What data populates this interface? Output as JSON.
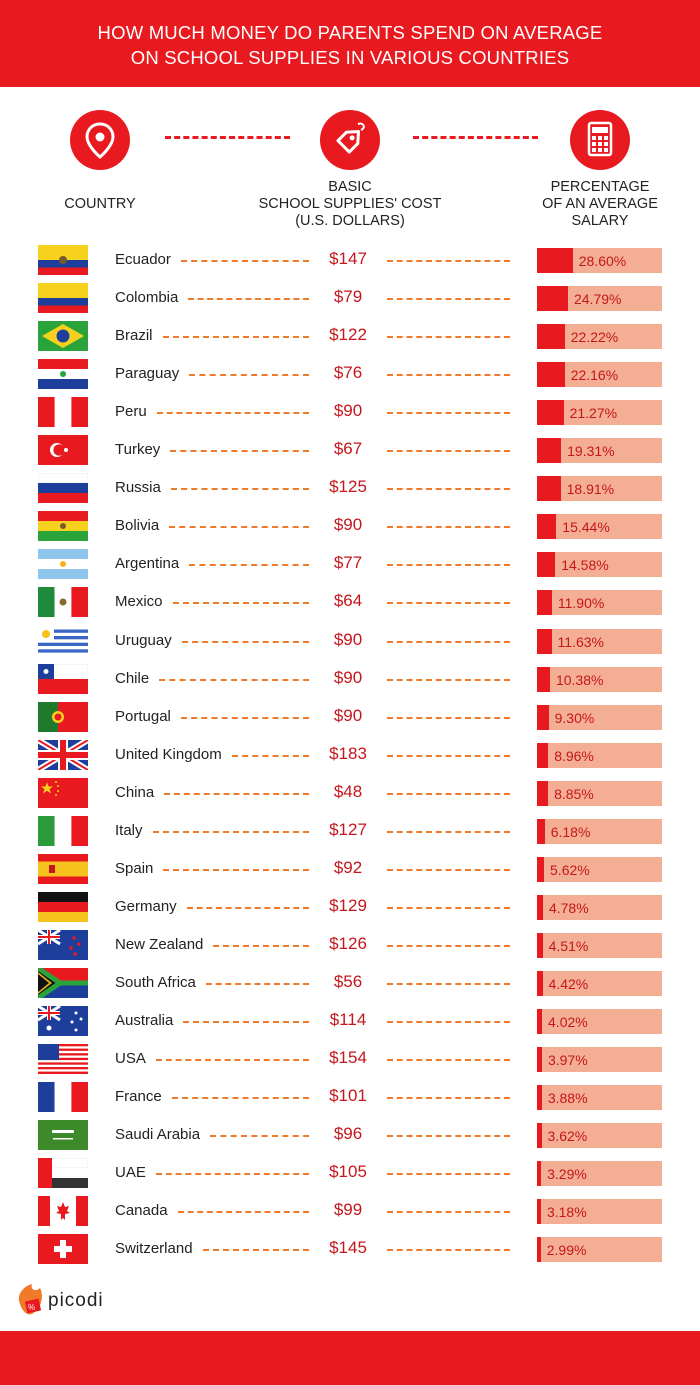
{
  "title": {
    "line1": "HOW MUCH MONEY DO PARENTS SPEND ON AVERAGE",
    "line2": "ON SCHOOL SUPPLIES IN VARIOUS COUNTRIES"
  },
  "columns": {
    "country": "COUNTRY",
    "cost": [
      "BASIC",
      "SCHOOL SUPPLIES' COST",
      "(U.S. DOLLARS)"
    ],
    "percent": [
      "PERCENTAGE",
      "OF AN AVERAGE",
      "SALARY"
    ]
  },
  "icons": [
    "location-pin-icon",
    "price-tag-icon",
    "calculator-icon"
  ],
  "colors": {
    "accent": "#e8191f",
    "bar_bg": "#f4ae93",
    "dash": "#f07a2a",
    "text_red": "#c5161c"
  },
  "brand": "picodi",
  "chart_data": {
    "type": "table",
    "title": "HOW MUCH MONEY DO PARENTS SPEND ON AVERAGE ON SCHOOL SUPPLIES IN VARIOUS COUNTRIES",
    "columns": [
      "COUNTRY",
      "BASIC SCHOOL SUPPLIES' COST (U.S. DOLLARS)",
      "PERCENTAGE OF AN AVERAGE SALARY"
    ],
    "rows": [
      {
        "country": "Ecuador",
        "flag": "ecuador-flag",
        "cost": "$147",
        "percent": "28.60%",
        "value": 28.6
      },
      {
        "country": "Colombia",
        "flag": "colombia-flag",
        "cost": "$79",
        "percent": "24.79%",
        "value": 24.79
      },
      {
        "country": "Brazil",
        "flag": "brazil-flag",
        "cost": "$122",
        "percent": "22.22%",
        "value": 22.22
      },
      {
        "country": "Paraguay",
        "flag": "paraguay-flag",
        "cost": "$76",
        "percent": "22.16%",
        "value": 22.16
      },
      {
        "country": "Peru",
        "flag": "peru-flag",
        "cost": "$90",
        "percent": "21.27%",
        "value": 21.27
      },
      {
        "country": "Turkey",
        "flag": "turkey-flag",
        "cost": "$67",
        "percent": "19.31%",
        "value": 19.31
      },
      {
        "country": "Russia",
        "flag": "russia-flag",
        "cost": "$125",
        "percent": "18.91%",
        "value": 18.91
      },
      {
        "country": "Bolivia",
        "flag": "bolivia-flag",
        "cost": "$90",
        "percent": "15.44%",
        "value": 15.44
      },
      {
        "country": "Argentina",
        "flag": "argentina-flag",
        "cost": "$77",
        "percent": "14.58%",
        "value": 14.58
      },
      {
        "country": "Mexico",
        "flag": "mexico-flag",
        "cost": "$64",
        "percent": "11.90%",
        "value": 11.9
      },
      {
        "country": "Uruguay",
        "flag": "uruguay-flag",
        "cost": "$90",
        "percent": "11.63%",
        "value": 11.63
      },
      {
        "country": "Chile",
        "flag": "chile-flag",
        "cost": "$90",
        "percent": "10.38%",
        "value": 10.38
      },
      {
        "country": "Portugal",
        "flag": "portugal-flag",
        "cost": "$90",
        "percent": "9.30%",
        "value": 9.3
      },
      {
        "country": "United Kingdom",
        "flag": "uk-flag",
        "cost": "$183",
        "percent": "8.96%",
        "value": 8.96
      },
      {
        "country": "China",
        "flag": "china-flag",
        "cost": "$48",
        "percent": "8.85%",
        "value": 8.85
      },
      {
        "country": "Italy",
        "flag": "italy-flag",
        "cost": "$127",
        "percent": "6.18%",
        "value": 6.18
      },
      {
        "country": "Spain",
        "flag": "spain-flag",
        "cost": "$92",
        "percent": "5.62%",
        "value": 5.62
      },
      {
        "country": "Germany",
        "flag": "germany-flag",
        "cost": "$129",
        "percent": "4.78%",
        "value": 4.78
      },
      {
        "country": "New Zealand",
        "flag": "new-zealand-flag",
        "cost": "$126",
        "percent": "4.51%",
        "value": 4.51
      },
      {
        "country": "South Africa",
        "flag": "south-africa-flag",
        "cost": "$56",
        "percent": "4.42%",
        "value": 4.42
      },
      {
        "country": "Australia",
        "flag": "australia-flag",
        "cost": "$114",
        "percent": "4.02%",
        "value": 4.02
      },
      {
        "country": "USA",
        "flag": "usa-flag",
        "cost": "$154",
        "percent": "3.97%",
        "value": 3.97
      },
      {
        "country": "France",
        "flag": "france-flag",
        "cost": "$101",
        "percent": "3.88%",
        "value": 3.88
      },
      {
        "country": "Saudi Arabia",
        "flag": "saudi-arabia-flag",
        "cost": "$96",
        "percent": "3.62%",
        "value": 3.62
      },
      {
        "country": "UAE",
        "flag": "uae-flag",
        "cost": "$105",
        "percent": "3.29%",
        "value": 3.29
      },
      {
        "country": "Canada",
        "flag": "canada-flag",
        "cost": "$99",
        "percent": "3.18%",
        "value": 3.18
      },
      {
        "country": "Switzerland",
        "flag": "switzerland-flag",
        "cost": "$145",
        "percent": "2.99%",
        "value": 2.99
      }
    ],
    "xlim": [
      0,
      100
    ]
  }
}
